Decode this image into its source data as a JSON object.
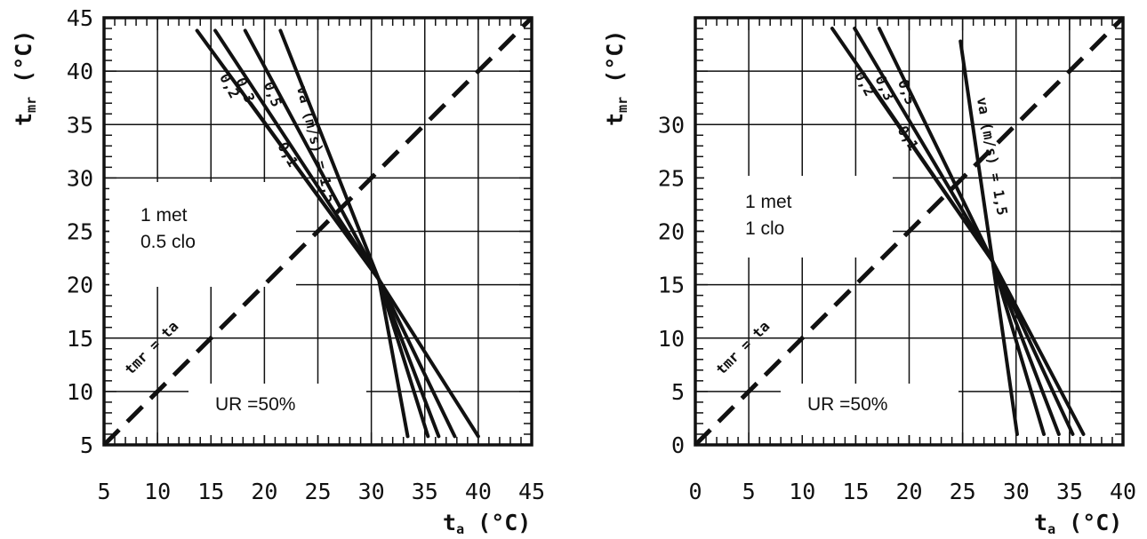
{
  "chart_data": [
    {
      "type": "line",
      "xlabel": "t",
      "xlabel_sub": "a",
      "xlabel_unit": "(°C)",
      "ylabel": "t",
      "ylabel_sub": "mr",
      "ylabel_unit": "(°C)",
      "xlim": [
        5,
        45
      ],
      "ylim": [
        5,
        45
      ],
      "xticks": [
        "5",
        "10",
        "15",
        "20",
        "25",
        "30",
        "35",
        "40",
        "45"
      ],
      "yticks": [
        "5",
        "10",
        "15",
        "20",
        "25",
        "30",
        "35",
        "40",
        "45"
      ],
      "xtick_values": [
        5,
        10,
        15,
        20,
        25,
        30,
        35,
        40,
        45
      ],
      "ytick_values": [
        5,
        10,
        15,
        20,
        25,
        30,
        35,
        40,
        45
      ],
      "grid": true,
      "annotations": [
        "1 met",
        "0.5 clo",
        "UR =50%"
      ],
      "diagonal_label": "tmr = ta",
      "series_label_prefix": "va (m/s) =",
      "series": [
        {
          "name": "0,1",
          "x": [
            18.7,
            30.7,
            40.0
          ],
          "y": [
            37.0,
            20.5,
            5.8
          ]
        },
        {
          "name": "0,2",
          "x": [
            13.7,
            30.7,
            37.8
          ],
          "y": [
            43.8,
            20.5,
            5.8
          ]
        },
        {
          "name": "0,3",
          "x": [
            15.4,
            30.7,
            36.3
          ],
          "y": [
            43.8,
            20.5,
            5.8
          ]
        },
        {
          "name": "0,5",
          "x": [
            18.2,
            30.7,
            35.3
          ],
          "y": [
            43.8,
            20.5,
            5.8
          ]
        },
        {
          "name": "1,5",
          "x": [
            21.5,
            30.7,
            33.4
          ],
          "y": [
            43.8,
            20.5,
            5.8
          ]
        }
      ]
    },
    {
      "type": "line",
      "xlabel": "t",
      "xlabel_sub": "a",
      "xlabel_unit": "(°C)",
      "ylabel": "t",
      "ylabel_sub": "mr",
      "ylabel_unit": "(°C)",
      "xlim": [
        0,
        40
      ],
      "ylim": [
        0,
        40
      ],
      "xticks": [
        "0",
        "5",
        "10",
        "15",
        "20",
        "25",
        "30",
        "35",
        "40"
      ],
      "yticks": [
        "0",
        "5",
        "10",
        "15",
        "20",
        "25",
        "30"
      ],
      "xtick_values": [
        0,
        5,
        10,
        15,
        20,
        25,
        30,
        35,
        40
      ],
      "ytick_values": [
        0,
        5,
        10,
        15,
        20,
        25,
        30
      ],
      "grid": true,
      "annotations": [
        "1 met",
        "1 clo",
        "UR =50%"
      ],
      "diagonal_label": "tmr = ta",
      "series_label_prefix": "va (m/s) =",
      "series": [
        {
          "name": "0,1",
          "x": [
            16.5,
            27.8,
            36.3
          ],
          "y": [
            33.5,
            17.2,
            1.0
          ]
        },
        {
          "name": "0,2",
          "x": [
            12.8,
            27.8,
            35.3
          ],
          "y": [
            39.0,
            17.2,
            1.0
          ]
        },
        {
          "name": "0,3",
          "x": [
            14.9,
            27.8,
            34.0
          ],
          "y": [
            39.0,
            17.2,
            1.0
          ]
        },
        {
          "name": "0,5",
          "x": [
            17.2,
            27.8,
            32.6
          ],
          "y": [
            39.0,
            17.2,
            1.0
          ]
        },
        {
          "name": "1,5",
          "x": [
            24.8,
            27.8,
            30.1
          ],
          "y": [
            37.8,
            17.2,
            1.0
          ]
        }
      ]
    }
  ]
}
